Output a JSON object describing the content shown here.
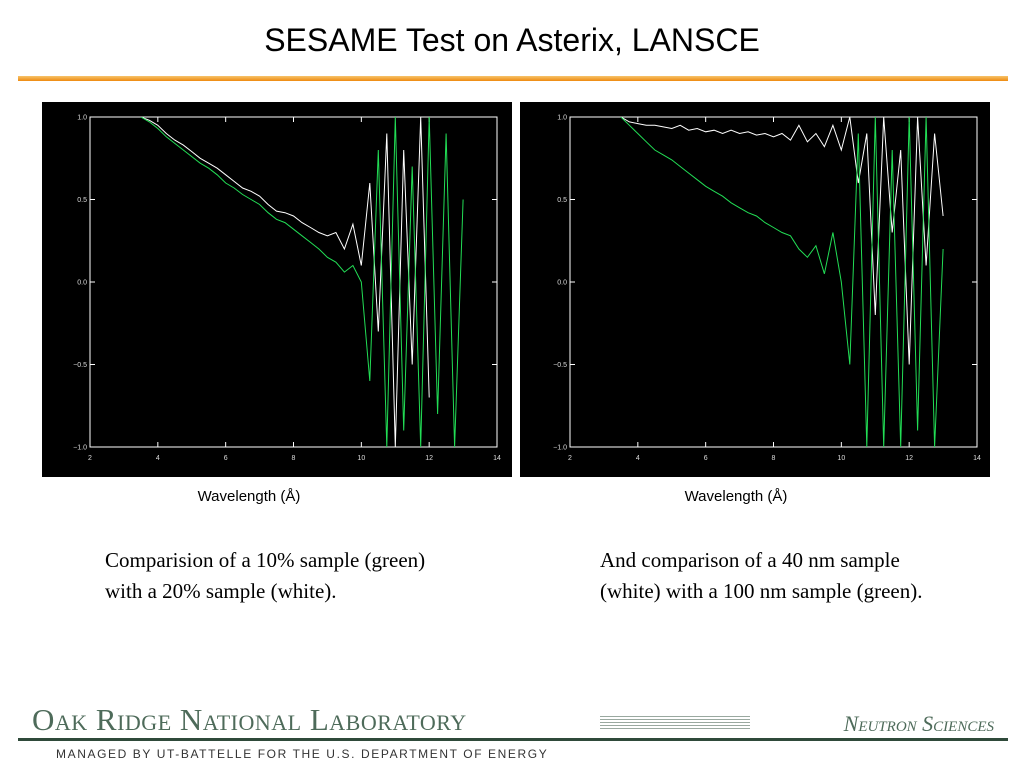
{
  "slide": {
    "title": "SESAME Test on Asterix, LANSCE",
    "captions": [
      "Comparision of a 10% sample (green) with a 20% sample (white).",
      "And comparison of a 40 nm sample (white) with a 100 nm sample (green)."
    ],
    "footer_left": "Oak Ridge National Laboratory",
    "footer_right": "Neutron Sciences",
    "footer_sub": "MANAGED BY UT-BATTELLE FOR THE U.S. DEPARTMENT OF ENERGY"
  },
  "chart_data": [
    {
      "type": "line",
      "x_label": "Wavelength (Å)",
      "x": [
        3.5,
        3.75,
        4,
        4.25,
        4.5,
        4.75,
        5,
        5.25,
        5.5,
        5.75,
        6,
        6.25,
        6.5,
        6.75,
        7,
        7.25,
        7.5,
        7.75,
        8,
        8.25,
        8.5,
        8.75,
        9,
        9.25,
        9.5,
        9.75,
        10,
        10.25,
        10.5,
        10.75,
        11,
        11.25,
        11.5,
        11.75,
        12,
        12.25,
        12.5,
        12.75,
        13
      ],
      "series": [
        {
          "color": "#ffffff",
          "values": [
            1.0,
            0.98,
            0.95,
            0.9,
            0.86,
            0.83,
            0.79,
            0.75,
            0.72,
            0.69,
            0.65,
            0.61,
            0.57,
            0.55,
            0.52,
            0.47,
            0.43,
            0.42,
            0.4,
            0.36,
            0.33,
            0.3,
            0.28,
            0.3,
            0.2,
            0.35,
            0.1,
            0.6,
            -0.3,
            0.9,
            -1.0,
            0.8,
            -0.5,
            1.0,
            -0.7,
            null,
            null,
            null,
            null
          ]
        },
        {
          "color": "#22dd55",
          "values": [
            1.0,
            0.97,
            0.93,
            0.88,
            0.84,
            0.8,
            0.76,
            0.72,
            0.69,
            0.65,
            0.6,
            0.57,
            0.53,
            0.5,
            0.47,
            0.42,
            0.38,
            0.36,
            0.32,
            0.28,
            0.24,
            0.2,
            0.15,
            0.12,
            0.06,
            0.1,
            0.0,
            -0.6,
            0.8,
            -1.0,
            1.0,
            -0.9,
            0.7,
            -1.0,
            1.0,
            -0.8,
            0.9,
            -1.0,
            0.5
          ]
        }
      ],
      "xlim": [
        2,
        14
      ],
      "xticks": [
        2,
        4,
        6,
        8,
        10,
        12,
        14
      ],
      "ylim": [
        -1,
        1
      ],
      "yticks": [
        {
          "value": -1,
          "label": "−1.0"
        },
        {
          "value": -0.5,
          "label": "−0.5"
        },
        {
          "value": 0,
          "label": "0.0"
        },
        0.5,
        {
          "value": 1,
          "label": "1.0"
        }
      ]
    },
    {
      "type": "line",
      "x_label": "Wavelength (Å)",
      "x": [
        3.5,
        3.75,
        4,
        4.25,
        4.5,
        4.75,
        5,
        5.25,
        5.5,
        5.75,
        6,
        6.25,
        6.5,
        6.75,
        7,
        7.25,
        7.5,
        7.75,
        8,
        8.25,
        8.5,
        8.75,
        9,
        9.25,
        9.5,
        9.75,
        10,
        10.25,
        10.5,
        10.75,
        11,
        11.25,
        11.5,
        11.75,
        12,
        12.25,
        12.5,
        12.75,
        13
      ],
      "series": [
        {
          "color": "#ffffff",
          "values": [
            1.0,
            0.97,
            0.96,
            0.95,
            0.95,
            0.94,
            0.93,
            0.95,
            0.92,
            0.93,
            0.91,
            0.92,
            0.9,
            0.92,
            0.9,
            0.91,
            0.89,
            0.9,
            0.88,
            0.9,
            0.86,
            0.95,
            0.85,
            0.9,
            0.82,
            0.95,
            0.8,
            1.0,
            0.6,
            0.9,
            -0.2,
            1.0,
            0.3,
            0.8,
            -0.5,
            1.0,
            0.1,
            0.9,
            0.4
          ]
        },
        {
          "color": "#22dd55",
          "values": [
            1.0,
            0.95,
            0.9,
            0.85,
            0.8,
            0.77,
            0.74,
            0.7,
            0.66,
            0.62,
            0.58,
            0.55,
            0.52,
            0.48,
            0.45,
            0.42,
            0.4,
            0.36,
            0.33,
            0.3,
            0.28,
            0.2,
            0.15,
            0.22,
            0.05,
            0.3,
            0.0,
            -0.5,
            0.9,
            -1.0,
            1.0,
            -1.0,
            0.8,
            -1.0,
            1.0,
            -0.9,
            1.0,
            -1.0,
            0.2
          ]
        }
      ],
      "xlim": [
        2,
        14
      ],
      "xticks": [
        2,
        4,
        6,
        8,
        10,
        12,
        14
      ],
      "ylim": [
        -1,
        1
      ],
      "yticks": [
        {
          "value": -1,
          "label": "−1.0"
        },
        {
          "value": -0.5,
          "label": "−0.5"
        },
        {
          "value": 0,
          "label": "0.0"
        },
        0.5,
        {
          "value": 1,
          "label": "1.0"
        }
      ]
    }
  ]
}
